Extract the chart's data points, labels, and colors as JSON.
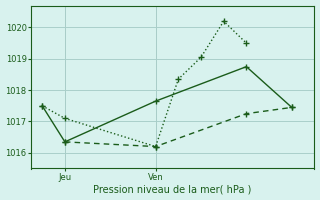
{
  "title": "Pression niveau de la mer( hPa )",
  "background_color": "#d8f2ee",
  "grid_color": "#aacfca",
  "line_color": "#1a5c1a",
  "ylim": [
    1015.5,
    1020.7
  ],
  "yticks": [
    1016,
    1017,
    1018,
    1019,
    1020
  ],
  "line1_dotted": {
    "x": [
      0,
      1,
      5,
      6,
      7,
      8,
      9
    ],
    "y": [
      1017.5,
      1017.1,
      1016.2,
      1018.35,
      1019.05,
      1020.2,
      1019.5
    ],
    "style": ":"
  },
  "line2_solid": {
    "x": [
      0,
      1,
      5,
      9,
      11
    ],
    "y": [
      1017.5,
      1016.35,
      1017.65,
      1018.75,
      1017.45
    ],
    "style": "-"
  },
  "line3_dashed": {
    "x": [
      1,
      5,
      9,
      11
    ],
    "y": [
      1016.35,
      1016.2,
      1017.25,
      1017.45
    ],
    "style": "--"
  },
  "xlim": [
    -0.5,
    12
  ],
  "x_jeu": 1,
  "x_ven": 5,
  "xtick_positions": [
    1,
    5
  ],
  "xtick_labels": [
    "Jeu",
    "Ven"
  ]
}
